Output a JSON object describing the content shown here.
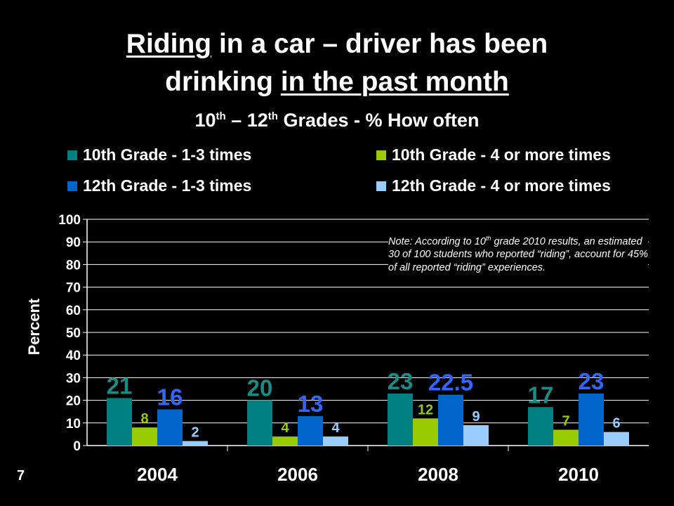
{
  "title": {
    "part1": "Riding",
    "part2": " in a car – driver has been",
    "part3": "drinking ",
    "part4": "in the past month",
    "sub_a": "10",
    "sub_sup1": "th",
    "sub_b": " – 12",
    "sub_sup2": "th",
    "sub_c": " Grades - % How often"
  },
  "note": {
    "a": "Note: According to 10",
    "sup": "th",
    "b": " grade 2010 results, an estimated 30 of 100 students who reported “riding”, account for 45% of all reported “riding” experiences."
  },
  "page_number": "7",
  "chart_data": {
    "type": "bar",
    "categories": [
      "2004",
      "2006",
      "2008",
      "2010"
    ],
    "series": [
      {
        "name": "10th Grade - 1-3 times",
        "color": "#008080",
        "label_color": "#1a8c86",
        "values": [
          21,
          20,
          23,
          17
        ]
      },
      {
        "name": "10th Grade - 4 or more times",
        "color": "#99cc00",
        "label_color": "#99cc00",
        "values": [
          8,
          4,
          12,
          7
        ]
      },
      {
        "name": "12th Grade - 1-3 times",
        "color": "#0066cc",
        "label_color": "#3366ff",
        "values": [
          16,
          13,
          22.5,
          23
        ]
      },
      {
        "name": "12th Grade - 4 or more times",
        "color": "#99ccff",
        "label_color": "#99ccff",
        "values": [
          2,
          4,
          9,
          6
        ]
      }
    ],
    "ylabel": "Percent",
    "xlabel": "",
    "ylim": [
      0,
      100
    ],
    "yticks": [
      0,
      10,
      20,
      30,
      40,
      50,
      60,
      70,
      80,
      90,
      100
    ],
    "grid": true,
    "legend_position": "top"
  }
}
